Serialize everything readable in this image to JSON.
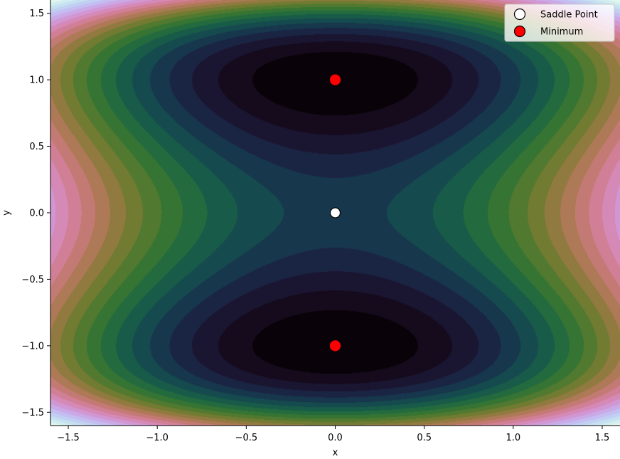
{
  "chart_data": {
    "type": "contour",
    "title": "",
    "xlabel": "x",
    "ylabel": "y",
    "xlim": [
      -1.6,
      1.6
    ],
    "ylim": [
      -1.6,
      1.6
    ],
    "xticks": [
      -1.5,
      -1.0,
      -0.5,
      0.0,
      0.5,
      1.0,
      1.5
    ],
    "yticks": [
      -1.5,
      -1.0,
      -0.5,
      0.0,
      0.5,
      1.0,
      1.5
    ],
    "xtick_labels": [
      "−1.5",
      "−1.0",
      "−0.5",
      "0.0",
      "0.5",
      "1.0",
      "1.5"
    ],
    "ytick_labels": [
      "−1.5",
      "−1.0",
      "−0.5",
      "0.0",
      "0.5",
      "1.0",
      "1.5"
    ],
    "grid": false,
    "legend_position": "top-right",
    "colormap": "cubehelix",
    "surface": "f(x, y) = x^2 - 2y^2 + y^4 (double-well along y, saddle at origin)",
    "series": [
      {
        "name": "Saddle Point",
        "marker": "circle",
        "color": "#ffffff",
        "edgecolor": "#000000",
        "points": [
          {
            "x": 0.0,
            "y": 0.0
          }
        ]
      },
      {
        "name": "Minimum",
        "marker": "circle",
        "color": "#ff0000",
        "edgecolor": "#ff0000",
        "points": [
          {
            "x": 0.0,
            "y": 1.0
          },
          {
            "x": 0.0,
            "y": -1.0
          }
        ]
      }
    ]
  }
}
